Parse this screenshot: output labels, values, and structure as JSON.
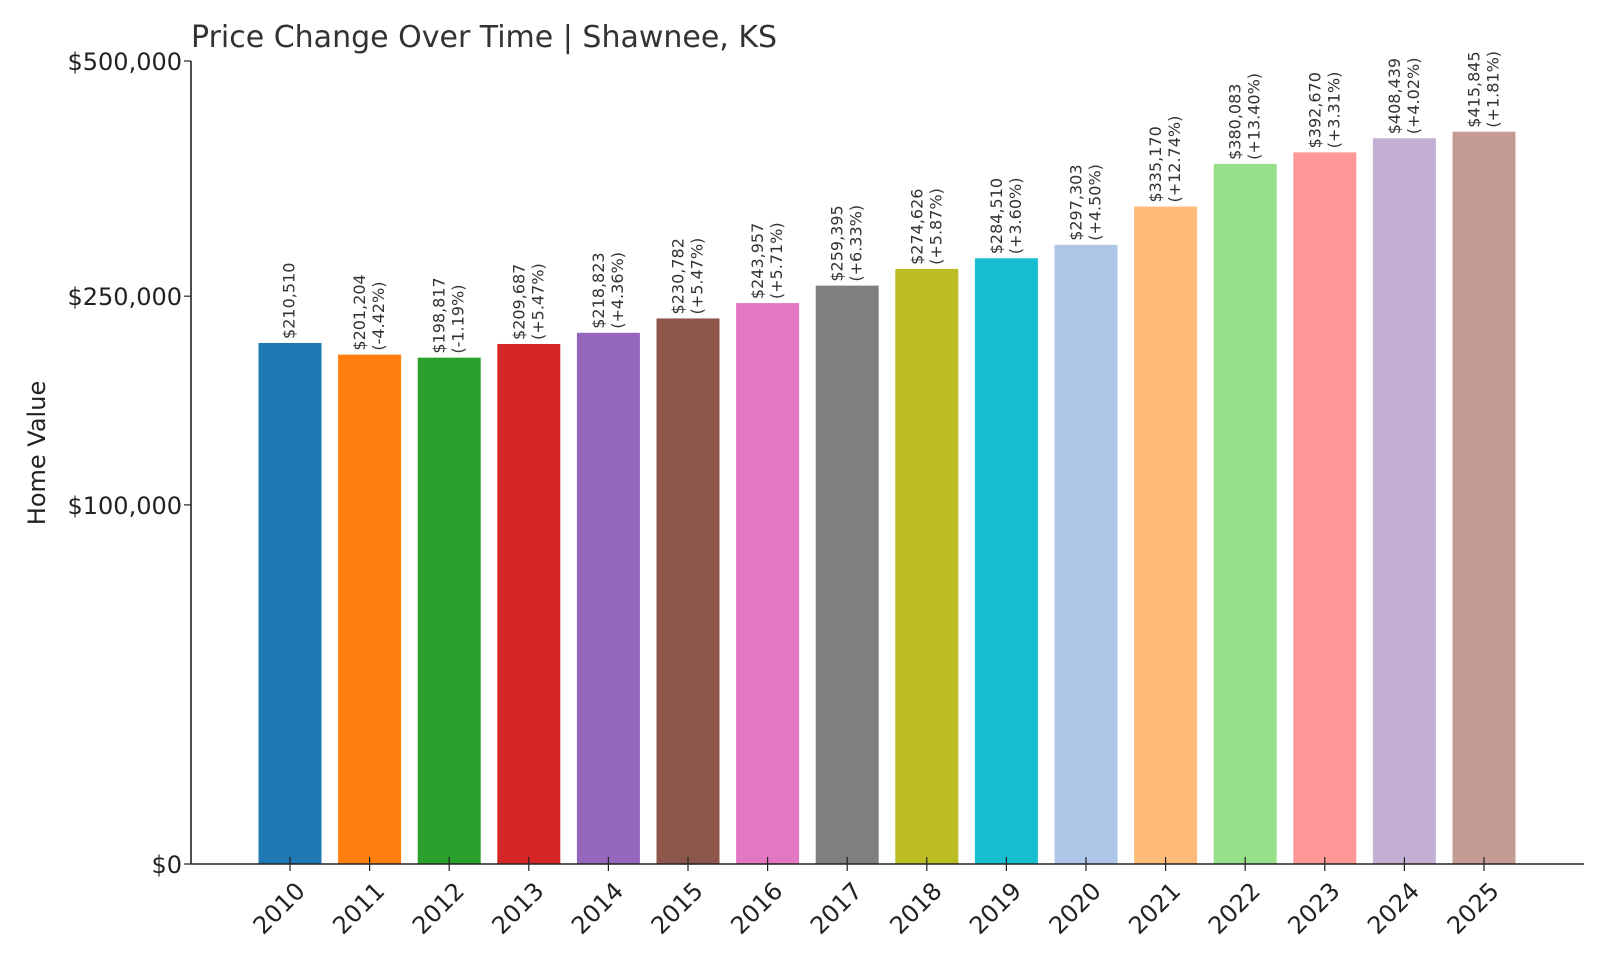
{
  "chart_data": {
    "type": "bar",
    "title": "Price Change Over Time | Shawnee, KS",
    "ylabel": "Home Value",
    "xlabel": "",
    "ylim": [
      0,
      500000
    ],
    "yscale": "sqrt",
    "grid": false,
    "yticks": [
      {
        "value": 0,
        "label": "$0"
      },
      {
        "value": 100000,
        "label": "$100,000"
      },
      {
        "value": 250000,
        "label": "$250,000"
      },
      {
        "value": 500000,
        "label": "$500,000"
      }
    ],
    "categories": [
      "2010",
      "2011",
      "2012",
      "2013",
      "2014",
      "2015",
      "2016",
      "2017",
      "2018",
      "2019",
      "2020",
      "2021",
      "2022",
      "2023",
      "2024",
      "2025"
    ],
    "values": [
      210510,
      201204,
      198817,
      209687,
      218823,
      230782,
      243957,
      259395,
      274626,
      284510,
      297303,
      335170,
      380083,
      392670,
      408439,
      415845
    ],
    "value_labels": [
      "$210,510",
      "$201,204",
      "$198,817",
      "$209,687",
      "$218,823",
      "$230,782",
      "$243,957",
      "$259,395",
      "$274,626",
      "$284,510",
      "$297,303",
      "$335,170",
      "$380,083",
      "$392,670",
      "$408,439",
      "$415,845"
    ],
    "change_labels": [
      "",
      "(-4.42%)",
      "(-1.19%)",
      "(+5.47%)",
      "(+4.36%)",
      "(+5.47%)",
      "(+5.71%)",
      "(+6.33%)",
      "(+5.87%)",
      "(+3.60%)",
      "(+4.50%)",
      "(+12.74%)",
      "(+13.40%)",
      "(+3.31%)",
      "(+4.02%)",
      "(+1.81%)"
    ],
    "colors": [
      "#1f77b4",
      "#ff7f0e",
      "#2ca02c",
      "#d62728",
      "#9467bd",
      "#8c564b",
      "#e377c2",
      "#7f7f7f",
      "#bcbd22",
      "#17becf",
      "#aec7e8",
      "#ffbb78",
      "#98df8a",
      "#ff9896",
      "#c5b0d5",
      "#c49c94"
    ]
  }
}
